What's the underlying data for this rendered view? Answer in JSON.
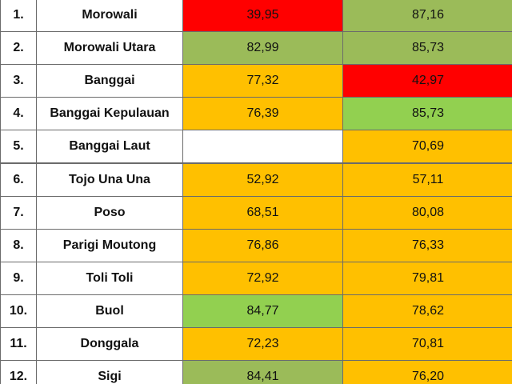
{
  "table": {
    "rows": [
      [
        "1.",
        "Morowali",
        "39,95",
        "87,16"
      ],
      [
        "2.",
        "Morowali Utara",
        "82,99",
        "85,73"
      ],
      [
        "3.",
        "Banggai",
        "77,32",
        "42,97"
      ],
      [
        "4.",
        "Banggai Kepulauan",
        "76,39",
        "85,73"
      ],
      [
        "5.",
        "Banggai Laut",
        null,
        "70,69"
      ],
      [
        "6.",
        "Tojo Una Una",
        "52,92",
        "57,11"
      ],
      [
        "7.",
        "Poso",
        "68,51",
        "80,08"
      ],
      [
        "8.",
        "Parigi Moutong",
        "76,86",
        "76,33"
      ],
      [
        "9.",
        "Toli Toli",
        "72,92",
        "79,81"
      ],
      [
        "10.",
        "Buol",
        "84,77",
        "78,62"
      ],
      [
        "11.",
        "Donggala",
        "72,23",
        "70,81"
      ],
      [
        "12.",
        "Sigi",
        "84,41",
        "76,20"
      ]
    ],
    "fills": [
      [
        "#ff0000",
        "#9bbb59"
      ],
      [
        "#9bbb59",
        "#9bbb59"
      ],
      [
        "#ffc000",
        "#ff0000"
      ],
      [
        "#ffc000",
        "#92d050"
      ],
      [
        "#ffffff",
        "#ffc000"
      ],
      [
        "#ffc000",
        "#ffc000"
      ],
      [
        "#ffc000",
        "#ffc000"
      ],
      [
        "#ffc000",
        "#ffc000"
      ],
      [
        "#ffc000",
        "#ffc000"
      ],
      [
        "#92d050",
        "#ffc000"
      ],
      [
        "#ffc000",
        "#ffc000"
      ],
      [
        "#9bbb59",
        "#ffc000"
      ]
    ]
  }
}
